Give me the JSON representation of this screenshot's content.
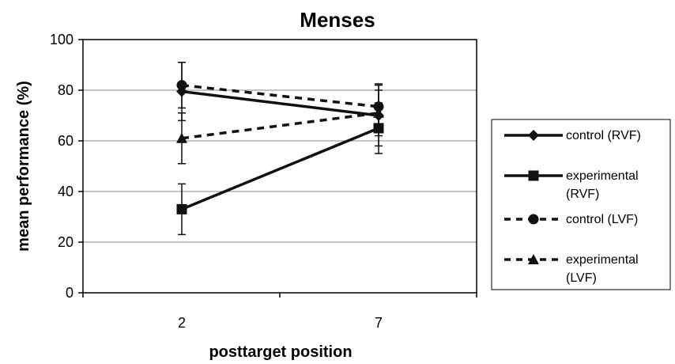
{
  "chart_data": {
    "type": "line",
    "title": "Menses",
    "xlabel": "posttarget position",
    "ylabel": "mean performance (%)",
    "categories": [
      "2",
      "7"
    ],
    "ylim": [
      0,
      100
    ],
    "yticks": [
      0,
      20,
      40,
      60,
      80,
      100
    ],
    "grid": "horizontal",
    "legend_position": "right",
    "series": [
      {
        "name": "control (RVF)",
        "values": [
          79.5,
          70
        ],
        "error": [
          11.5,
          12
        ],
        "marker": "diamond",
        "dash": "solid"
      },
      {
        "name": "experimental (RVF)",
        "values": [
          33,
          65
        ],
        "error": [
          10,
          10
        ],
        "marker": "square",
        "dash": "solid"
      },
      {
        "name": "control (LVF)",
        "values": [
          82,
          73.5
        ],
        "error": [
          9,
          9
        ],
        "marker": "circle",
        "dash": "dashed"
      },
      {
        "name": "experimental (LVF)",
        "values": [
          61,
          71
        ],
        "error": [
          10,
          9
        ],
        "marker": "triangle",
        "dash": "dashed"
      }
    ]
  }
}
